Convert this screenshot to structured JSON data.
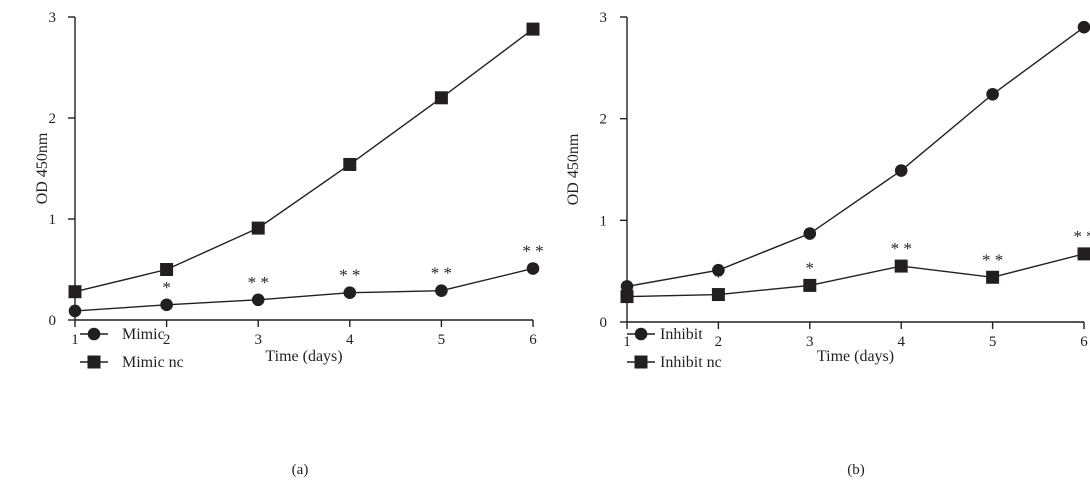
{
  "chart_data": [
    {
      "type": "line",
      "panel_label": "(a)",
      "xlabel": "Time (days)",
      "ylabel": "OD 450nm",
      "x": [
        1,
        2,
        3,
        4,
        5,
        6
      ],
      "xticks": [
        "1",
        "2",
        "3",
        "4",
        "5",
        "6"
      ],
      "yticks": [
        "0",
        "1",
        "2",
        "3"
      ],
      "ylim": [
        0,
        3
      ],
      "legend_position": "bottom-left",
      "series": [
        {
          "name": "Mimic",
          "marker": "circle",
          "values": [
            0.09,
            0.15,
            0.2,
            0.27,
            0.29,
            0.51
          ]
        },
        {
          "name": "Mimic nc",
          "marker": "square",
          "values": [
            0.28,
            0.5,
            0.91,
            1.54,
            2.2,
            2.88
          ]
        }
      ],
      "annotations": [
        {
          "x": 2,
          "text": "*"
        },
        {
          "x": 3,
          "text": "* *"
        },
        {
          "x": 4,
          "text": "* *"
        },
        {
          "x": 5,
          "text": "* *"
        },
        {
          "x": 6,
          "text": "* *"
        }
      ]
    },
    {
      "type": "line",
      "panel_label": "(b)",
      "xlabel": "Time (days)",
      "ylabel": "OD 450nm",
      "x": [
        1,
        2,
        3,
        4,
        5,
        6
      ],
      "xticks": [
        "1",
        "2",
        "3",
        "4",
        "5",
        "6"
      ],
      "yticks": [
        "0",
        "1",
        "2",
        "3"
      ],
      "ylim": [
        0,
        3
      ],
      "legend_position": "bottom-left",
      "series": [
        {
          "name": "Inhibit",
          "marker": "circle",
          "values": [
            0.35,
            0.51,
            0.87,
            1.49,
            2.24,
            2.9
          ]
        },
        {
          "name": "Inhibit nc",
          "marker": "square",
          "values": [
            0.25,
            0.27,
            0.36,
            0.55,
            0.44,
            0.67
          ]
        }
      ],
      "annotations": [
        {
          "x": 2,
          "text": "*"
        },
        {
          "x": 3,
          "text": "*"
        },
        {
          "x": 4,
          "text": "* *"
        },
        {
          "x": 5,
          "text": "* *"
        },
        {
          "x": 6,
          "text": "* *"
        }
      ]
    }
  ]
}
